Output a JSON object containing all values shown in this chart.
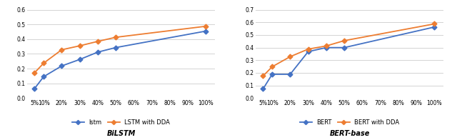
{
  "x_labels": [
    "5%",
    "10%",
    "20%",
    "30%",
    "40%",
    "50%",
    "60%",
    "70%",
    "80%",
    "90%",
    "100%"
  ],
  "x_vals": [
    5,
    10,
    20,
    30,
    40,
    50,
    60,
    70,
    80,
    90,
    100
  ],
  "bilstm": {
    "lstm": [
      0.065,
      0.145,
      0.218,
      0.262,
      0.312,
      0.343,
      null,
      null,
      null,
      null,
      0.455
    ],
    "lstm_dda": [
      0.172,
      0.237,
      0.328,
      0.355,
      0.385,
      0.413,
      null,
      null,
      null,
      null,
      0.488
    ],
    "ylim": [
      0,
      0.6
    ],
    "yticks": [
      0.0,
      0.1,
      0.2,
      0.3,
      0.4,
      0.5,
      0.6
    ],
    "legend_labels": [
      "lstm",
      "LSTM with DDA"
    ],
    "subtitle": "BiLSTM"
  },
  "bert": {
    "bert": [
      0.073,
      0.188,
      0.188,
      0.368,
      0.4,
      0.4,
      null,
      null,
      null,
      null,
      0.563
    ],
    "bert_dda": [
      0.175,
      0.248,
      0.328,
      0.388,
      0.413,
      0.455,
      null,
      null,
      null,
      null,
      0.588
    ],
    "ylim": [
      0,
      0.7
    ],
    "yticks": [
      0.0,
      0.1,
      0.2,
      0.3,
      0.4,
      0.5,
      0.6,
      0.7
    ],
    "legend_labels": [
      "BERT",
      "BERT with DDA"
    ],
    "subtitle": "BERT-base"
  },
  "color_blue": "#4472C4",
  "color_orange": "#ED7D31",
  "marker": "D",
  "markersize": 3.5,
  "linewidth": 1.3,
  "background_color": "#ffffff",
  "grid_color": "#d3d3d3"
}
